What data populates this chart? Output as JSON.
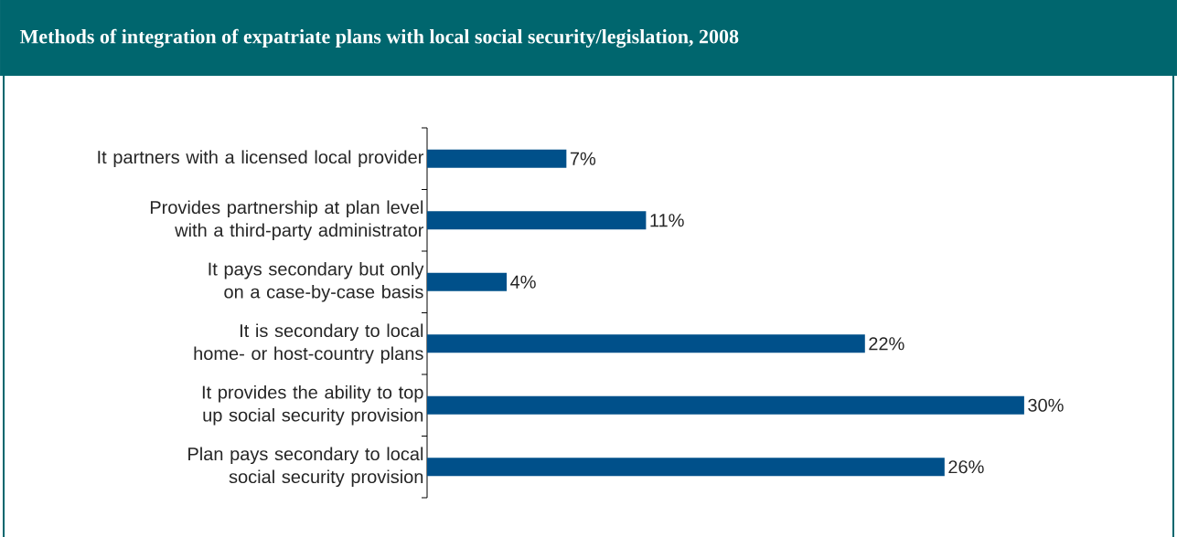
{
  "chart_data": {
    "type": "bar",
    "orientation": "horizontal",
    "title": "Methods of integration of expatriate plans with local social security/legislation, 2008",
    "categories": [
      "It partners with a licensed local provider",
      "Provides partnership at plan level with a third-party administrator",
      "It pays secondary but only on a case-by-case basis",
      "It is secondary to local home- or host-country plans",
      "It provides the ability to top up social security provision",
      "Plan pays secondary to local social security provision"
    ],
    "values": [
      7,
      11,
      4,
      22,
      30,
      26
    ],
    "value_labels": [
      "7%",
      "11%",
      "4%",
      "22%",
      "30%",
      "26%"
    ],
    "color": "#00508a"
  }
}
